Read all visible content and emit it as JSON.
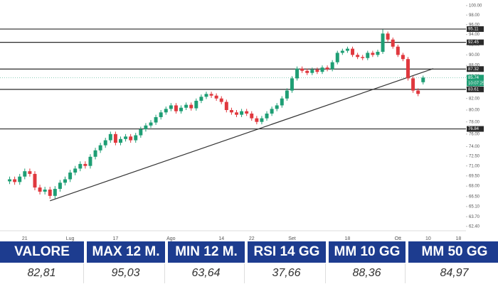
{
  "chart_data": {
    "type": "candlestick",
    "log_scale": true,
    "categories": [
      null,
      null,
      null,
      "21",
      null,
      null,
      null,
      null,
      null,
      null,
      null,
      null,
      "Lug",
      null,
      null,
      null,
      null,
      null,
      null,
      null,
      null,
      "17",
      null,
      null,
      null,
      null,
      null,
      null,
      null,
      null,
      null,
      null,
      "Ago",
      null,
      null,
      null,
      null,
      null,
      null,
      null,
      null,
      null,
      "14",
      null,
      null,
      null,
      null,
      null,
      "22",
      null,
      null,
      null,
      null,
      null,
      null,
      null,
      "Set",
      null,
      null,
      null,
      null,
      null,
      null,
      null,
      null,
      null,
      null,
      "18",
      null,
      null,
      null,
      null,
      null,
      null,
      null,
      null,
      null,
      "Ott",
      null,
      null,
      null,
      null,
      null,
      "10",
      null,
      null,
      null,
      null,
      null,
      "18",
      null
    ],
    "open": [
      68.7,
      69.0,
      68.6,
      69.4,
      70.2,
      69.8,
      67.8,
      67.2,
      67.5,
      66.6,
      67.6,
      68.5,
      69.0,
      70.0,
      70.6,
      71.3,
      71.0,
      72.4,
      73.4,
      74.2,
      75.0,
      76.0,
      74.6,
      75.2,
      75.6,
      75.0,
      75.8,
      76.8,
      77.4,
      77.9,
      78.8,
      79.6,
      80.2,
      80.8,
      79.8,
      80.4,
      80.9,
      80.3,
      81.6,
      82.3,
      82.8,
      82.5,
      82.0,
      81.4,
      80.0,
      79.6,
      79.2,
      79.8,
      79.4,
      78.6,
      78.0,
      78.6,
      79.4,
      80.2,
      80.8,
      82.0,
      83.4,
      85.6,
      87.4,
      87.0,
      86.6,
      87.2,
      86.8,
      87.6,
      87.3,
      88.6,
      90.4,
      90.8,
      91.2,
      90.0,
      89.6,
      89.4,
      90.4,
      90.0,
      90.6,
      94.2,
      93.0,
      91.6,
      90.0,
      89.2,
      85.6,
      83.4,
      84.9,
      null,
      null,
      null,
      null,
      null,
      null,
      null,
      null
    ],
    "high": [
      69.4,
      69.4,
      69.8,
      70.6,
      70.6,
      70.2,
      68.2,
      67.9,
      67.9,
      68.0,
      68.9,
      69.4,
      70.4,
      71.0,
      71.7,
      71.7,
      72.8,
      73.8,
      74.6,
      75.4,
      76.4,
      76.4,
      75.6,
      76.0,
      76.0,
      76.2,
      77.2,
      77.8,
      78.3,
      79.2,
      80.0,
      80.6,
      81.2,
      81.2,
      80.8,
      81.3,
      81.3,
      82.0,
      82.7,
      83.2,
      83.2,
      82.9,
      82.4,
      81.8,
      80.4,
      80.0,
      80.2,
      80.2,
      79.8,
      79.0,
      79.0,
      79.8,
      80.6,
      81.2,
      82.4,
      83.8,
      86.0,
      87.8,
      87.8,
      87.4,
      87.6,
      87.6,
      88.0,
      88.0,
      89.0,
      90.8,
      91.2,
      91.6,
      91.6,
      90.4,
      90.0,
      90.8,
      90.8,
      91.0,
      95.03,
      94.6,
      93.4,
      92.0,
      90.4,
      89.6,
      86.0,
      83.8,
      86.1,
      null,
      null,
      null,
      null,
      null,
      null,
      null,
      null
    ],
    "low": [
      68.3,
      68.2,
      68.2,
      69.0,
      69.4,
      67.4,
      66.8,
      66.8,
      66.2,
      66.2,
      67.2,
      68.1,
      68.6,
      69.6,
      70.2,
      70.6,
      70.6,
      72.0,
      73.0,
      73.8,
      74.6,
      74.2,
      74.2,
      74.8,
      74.6,
      74.6,
      75.4,
      76.4,
      77.0,
      77.5,
      78.4,
      79.2,
      79.8,
      79.4,
      79.4,
      80.0,
      79.9,
      79.9,
      81.2,
      81.9,
      82.1,
      81.6,
      81.0,
      79.6,
      79.2,
      78.8,
      78.8,
      79.0,
      78.2,
      77.6,
      77.6,
      78.2,
      79.0,
      79.8,
      80.4,
      81.6,
      83.0,
      85.2,
      86.6,
      86.2,
      86.2,
      86.4,
      86.4,
      86.9,
      86.9,
      88.2,
      90.0,
      90.4,
      89.6,
      89.2,
      89.0,
      89.0,
      89.6,
      89.6,
      90.2,
      92.6,
      91.2,
      89.6,
      88.8,
      85.2,
      83.0,
      82.4,
      84.5,
      null,
      null,
      null,
      null,
      null,
      null,
      null,
      null
    ],
    "close": [
      69.0,
      68.6,
      69.4,
      70.2,
      69.8,
      67.8,
      67.2,
      67.5,
      66.6,
      67.6,
      68.5,
      69.0,
      70.0,
      70.6,
      71.3,
      71.0,
      72.4,
      73.4,
      74.2,
      75.0,
      76.0,
      74.6,
      75.2,
      75.6,
      75.0,
      75.8,
      76.8,
      77.4,
      77.9,
      78.8,
      79.6,
      80.2,
      80.8,
      79.8,
      80.4,
      80.9,
      80.3,
      81.6,
      82.3,
      82.8,
      82.5,
      82.0,
      81.4,
      80.0,
      79.6,
      79.2,
      79.8,
      79.4,
      78.6,
      78.0,
      78.6,
      79.4,
      80.2,
      80.8,
      82.0,
      83.4,
      85.6,
      87.4,
      87.0,
      86.6,
      87.2,
      86.8,
      87.6,
      87.3,
      88.6,
      90.4,
      90.8,
      91.2,
      90.0,
      89.6,
      89.4,
      90.4,
      90.0,
      90.6,
      94.2,
      93.0,
      91.6,
      90.0,
      89.2,
      85.6,
      83.4,
      82.81,
      85.74,
      null,
      null,
      null,
      null,
      null,
      null,
      null,
      null
    ],
    "colors": {
      "up": "#1e9e74",
      "down": "#e0383e",
      "level": "#2a2a2a",
      "trend": "#333333"
    },
    "ylim": [
      62.1,
      101.2
    ],
    "yticks": [
      {
        "value": 100,
        "label": "100.00"
      },
      {
        "value": 98,
        "label": "98.00"
      },
      {
        "value": 96,
        "label": "96.00"
      },
      {
        "value": 94,
        "label": "94.00"
      },
      {
        "value": 92,
        "label": "92.00"
      },
      {
        "value": 90,
        "label": "90.00"
      },
      {
        "value": 88,
        "label": "88.00"
      },
      {
        "value": 86,
        "label": "86.00"
      },
      {
        "value": 84,
        "label": "84.00"
      },
      {
        "value": 82,
        "label": "82.00"
      },
      {
        "value": 80,
        "label": "80.00"
      },
      {
        "value": 78,
        "label": "78.00"
      },
      {
        "value": 76,
        "label": "76.00"
      },
      {
        "value": 74,
        "label": "74.00"
      },
      {
        "value": 72.5,
        "label": "72.50"
      },
      {
        "value": 71,
        "label": "71.00"
      },
      {
        "value": 69.5,
        "label": "69.50"
      },
      {
        "value": 68,
        "label": "68.00"
      },
      {
        "value": 66.5,
        "label": "66.50"
      },
      {
        "value": 65.1,
        "label": "65.10"
      },
      {
        "value": 63.7,
        "label": "63.70"
      },
      {
        "value": 62.4,
        "label": "62.40"
      }
    ],
    "levels": [
      95.11,
      92.45,
      87.32,
      83.61,
      76.84
    ],
    "trendline": {
      "x": [
        8,
        84
      ],
      "y": [
        65.9,
        87.4
      ]
    },
    "last_price": {
      "value": 85.74,
      "time": "10:07:25"
    }
  },
  "table": {
    "headers": [
      "VALORE",
      "MAX 12 M.",
      "MIN 12 M.",
      "RSI 14 GG",
      "MM 10 GG",
      "MM 50 GG"
    ],
    "rows": [
      [
        "82,81",
        "95,03",
        "63,64",
        "37,66",
        "88,36",
        "84,97"
      ]
    ]
  }
}
